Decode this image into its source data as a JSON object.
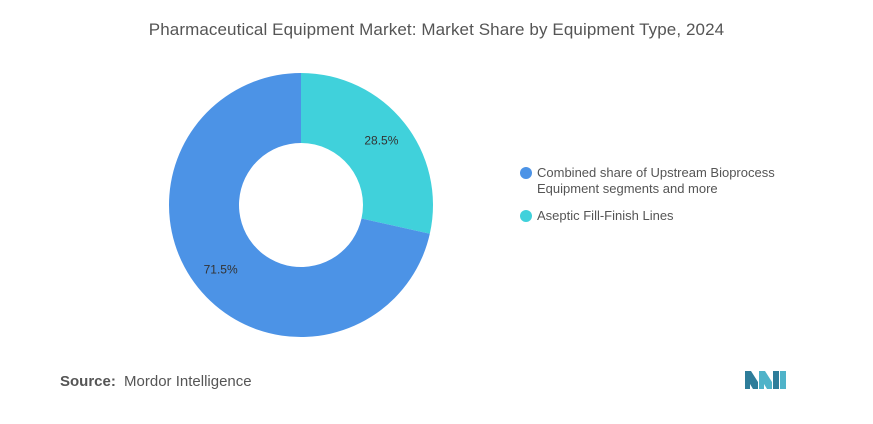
{
  "chart_data": {
    "type": "pie",
    "title": "Pharmaceutical Equipment Market: Market Share by Equipment Type, 2024",
    "slices": [
      {
        "label": "Aseptic Fill-Finish Lines",
        "value": 28.5,
        "display": "28.5%",
        "color": "#40d1db"
      },
      {
        "label": "Combined share of Upstream Bioprocess Equipment segments and more",
        "value": 71.5,
        "display": "71.5%",
        "color": "#4c93e6"
      }
    ],
    "legend_placement": "right",
    "legend": [
      {
        "label": "Combined share of Upstream Bioprocess Equipment segments and more",
        "color": "#4c93e6"
      },
      {
        "label": "Aseptic Fill-Finish Lines",
        "color": "#40d1db"
      }
    ]
  },
  "source": {
    "label": "Source:",
    "text": "Mordor Intelligence"
  },
  "logo": {
    "icon": "mordor-intelligence-logo-icon",
    "color": "#2e7d9a"
  }
}
